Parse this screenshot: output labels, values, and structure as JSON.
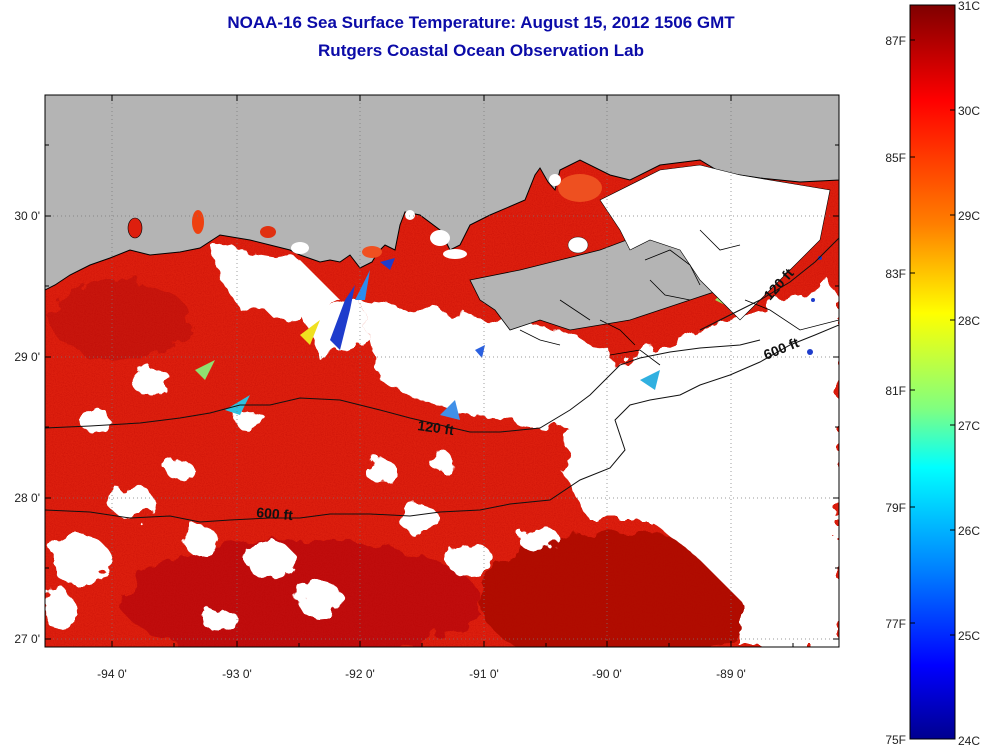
{
  "title": "NOAA-16 Sea Surface Temperature:  August 15, 2012 1506 GMT",
  "subtitle": "Rutgers Coastal Ocean Observation Lab",
  "map": {
    "lon_labels": [
      "-94 0'",
      "-93 0'",
      "-92 0'",
      "-91 0'",
      "-90 0'",
      "-89 0'"
    ],
    "lat_labels": [
      "27 0'",
      "28 0'",
      "29 0'",
      "30 0'"
    ],
    "isobaths": [
      "120 ft",
      "600 ft",
      "120 ft",
      "600 ft"
    ],
    "colors": {
      "land": "#b4b4b4",
      "ocean_warm": "#dd1f0e",
      "ocean_hot": "#b00c06",
      "cloud": "#ffffff",
      "coastline": "#000000",
      "grid": "#666666"
    }
  },
  "colorbar": {
    "celsius_labels": [
      "31C",
      "30C",
      "29C",
      "28C",
      "27C",
      "26C",
      "25C",
      "24C"
    ],
    "fahrenheit_labels": [
      "87F",
      "85F",
      "83F",
      "81F",
      "79F",
      "77F",
      "75F"
    ],
    "colormap": [
      "#7f0000",
      "#ff0000",
      "#ff8000",
      "#ffff00",
      "#80ff80",
      "#00ffff",
      "#0080ff",
      "#0000ff",
      "#00008f"
    ]
  }
}
